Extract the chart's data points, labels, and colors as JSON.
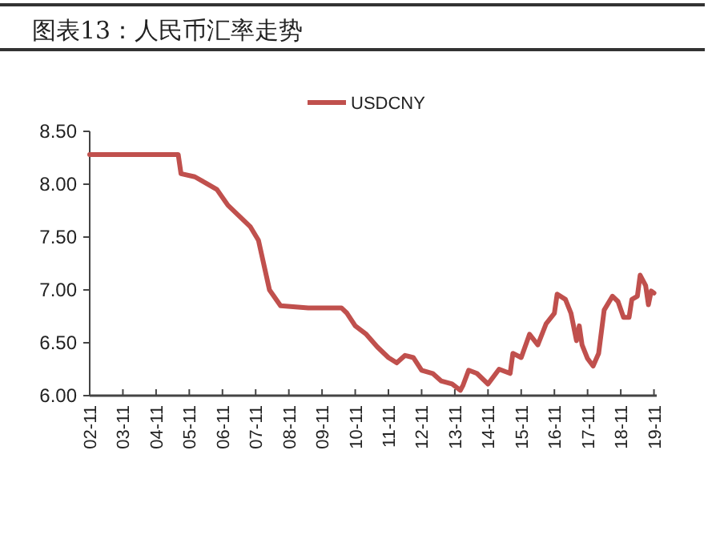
{
  "chart_data": {
    "type": "line",
    "title": "图表13：人民币汇率走势",
    "x": [
      "2002-11",
      "2005-07",
      "2005-08",
      "2006-01",
      "2006-05",
      "2006-09",
      "2007-01",
      "2007-05",
      "2007-09",
      "2007-12",
      "2008-04",
      "2008-08",
      "2009-06",
      "2010-06",
      "2010-08",
      "2010-11",
      "2011-03",
      "2011-07",
      "2011-11",
      "2012-02",
      "2012-05",
      "2012-08",
      "2012-11",
      "2013-03",
      "2013-06",
      "2013-10",
      "2014-01",
      "2014-02",
      "2014-04",
      "2014-07",
      "2014-11",
      "2015-03",
      "2015-07",
      "2015-08",
      "2015-11",
      "2016-02",
      "2016-05",
      "2016-08",
      "2016-11",
      "2016-12",
      "2017-03",
      "2017-05",
      "2017-07",
      "2017-08",
      "2017-09",
      "2017-11",
      "2018-01",
      "2018-03",
      "2018-05",
      "2018-08",
      "2018-10",
      "2018-12",
      "2019-02",
      "2019-03",
      "2019-05",
      "2019-06",
      "2019-08",
      "2019-09",
      "2019-10",
      "2019-11"
    ],
    "series": [
      {
        "name": "USDCNY",
        "color": "#c0504d",
        "values": [
          8.28,
          8.28,
          8.1,
          8.07,
          8.01,
          7.95,
          7.8,
          7.7,
          7.6,
          7.47,
          7.0,
          6.85,
          6.83,
          6.83,
          6.78,
          6.66,
          6.58,
          6.46,
          6.36,
          6.31,
          6.38,
          6.36,
          6.24,
          6.21,
          6.14,
          6.11,
          6.05,
          6.1,
          6.24,
          6.21,
          6.11,
          6.25,
          6.21,
          6.4,
          6.36,
          6.58,
          6.48,
          6.68,
          6.78,
          6.96,
          6.91,
          6.78,
          6.52,
          6.66,
          6.48,
          6.35,
          6.28,
          6.4,
          6.81,
          6.94,
          6.89,
          6.74,
          6.74,
          6.91,
          6.94,
          7.14,
          7.04,
          6.86,
          6.99,
          6.97
        ]
      }
    ],
    "xlim": [
      "2002-11",
      "2019-12"
    ],
    "xticks": [
      {
        "value": "2002-11",
        "label": "02-11"
      },
      {
        "value": "2003-11",
        "label": "03-11"
      },
      {
        "value": "2004-11",
        "label": "04-11"
      },
      {
        "value": "2005-11",
        "label": "05-11"
      },
      {
        "value": "2006-11",
        "label": "06-11"
      },
      {
        "value": "2007-11",
        "label": "07-11"
      },
      {
        "value": "2008-11",
        "label": "08-11"
      },
      {
        "value": "2009-11",
        "label": "09-11"
      },
      {
        "value": "2010-11",
        "label": "10-11"
      },
      {
        "value": "2011-11",
        "label": "11-11"
      },
      {
        "value": "2012-11",
        "label": "12-11"
      },
      {
        "value": "2013-11",
        "label": "13-11"
      },
      {
        "value": "2014-11",
        "label": "14-11"
      },
      {
        "value": "2015-11",
        "label": "15-11"
      },
      {
        "value": "2016-11",
        "label": "16-11"
      },
      {
        "value": "2017-11",
        "label": "17-11"
      },
      {
        "value": "2018-11",
        "label": "18-11"
      },
      {
        "value": "2019-11",
        "label": "19-11"
      }
    ],
    "ylim": [
      6.0,
      8.5
    ],
    "yticks": [
      {
        "value": 6.0,
        "label": "6.00"
      },
      {
        "value": 6.5,
        "label": "6.50"
      },
      {
        "value": 7.0,
        "label": "7.00"
      },
      {
        "value": 7.5,
        "label": "7.50"
      },
      {
        "value": 8.0,
        "label": "8.00"
      },
      {
        "value": 8.5,
        "label": "8.50"
      }
    ],
    "legend": "top",
    "grid": false,
    "marker": "none",
    "line_style": "solid"
  }
}
